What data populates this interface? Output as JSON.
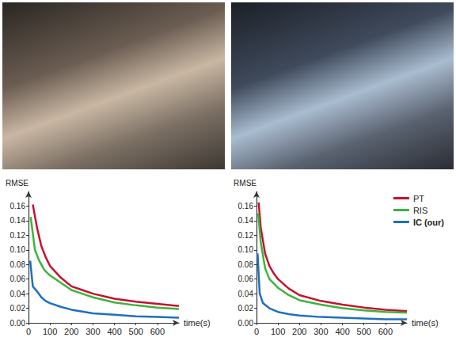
{
  "chart_data": [
    {
      "type": "line",
      "ylabel": "RMSE",
      "xlabel": "time(s)",
      "grid": false,
      "xlim": [
        0,
        700
      ],
      "xticks": [
        0,
        100,
        200,
        300,
        400,
        500,
        600
      ],
      "ylim": [
        0,
        0.18
      ],
      "yticks": [
        {
          "value": 0,
          "label": "0.00"
        },
        0.02,
        0.04,
        0.06,
        0.08,
        {
          "value": 0.1,
          "label": "0.10"
        },
        0.12,
        0.14,
        0.16
      ],
      "series": [
        {
          "name": "PT",
          "color": "#c8102e",
          "x": [
            20,
            40,
            60,
            80,
            100,
            150,
            200,
            250,
            300,
            400,
            500,
            600,
            700
          ],
          "values": [
            0.162,
            0.13,
            0.105,
            0.09,
            0.078,
            0.062,
            0.05,
            0.045,
            0.04,
            0.033,
            0.029,
            0.026,
            0.023
          ]
        },
        {
          "name": "RIS",
          "color": "#3cb43c",
          "x": [
            10,
            30,
            50,
            75,
            100,
            150,
            200,
            250,
            300,
            400,
            500,
            600,
            700
          ],
          "values": [
            0.145,
            0.1,
            0.085,
            0.072,
            0.065,
            0.055,
            0.045,
            0.04,
            0.035,
            0.028,
            0.024,
            0.021,
            0.019
          ]
        },
        {
          "name": "IC (our)",
          "color": "#1f6fc0",
          "x": [
            8,
            20,
            40,
            60,
            80,
            100,
            150,
            200,
            300,
            400,
            500,
            600,
            700
          ],
          "values": [
            0.085,
            0.05,
            0.043,
            0.035,
            0.03,
            0.027,
            0.022,
            0.018,
            0.013,
            0.011,
            0.009,
            0.008,
            0.007
          ]
        }
      ]
    },
    {
      "type": "line",
      "ylabel": "RMSE",
      "xlabel": "time(s)",
      "grid": false,
      "legend": "top-right",
      "xlim": [
        0,
        700
      ],
      "xticks": [
        0,
        100,
        200,
        300,
        400,
        500,
        600
      ],
      "ylim": [
        0,
        0.18
      ],
      "yticks": [
        {
          "value": 0,
          "label": "0.00"
        },
        0.02,
        0.04,
        0.06,
        0.08,
        {
          "value": 0.1,
          "label": "0.10"
        },
        0.12,
        0.14,
        0.16
      ],
      "series": [
        {
          "name": "PT",
          "color": "#c8102e",
          "x": [
            10,
            20,
            40,
            60,
            80,
            100,
            150,
            200,
            300,
            400,
            500,
            600,
            700
          ],
          "values": [
            0.165,
            0.13,
            0.095,
            0.078,
            0.068,
            0.06,
            0.047,
            0.038,
            0.03,
            0.025,
            0.021,
            0.018,
            0.016
          ]
        },
        {
          "name": "RIS",
          "color": "#3cb43c",
          "x": [
            8,
            20,
            40,
            60,
            100,
            150,
            200,
            300,
            400,
            500,
            600,
            700
          ],
          "values": [
            0.15,
            0.11,
            0.075,
            0.06,
            0.048,
            0.038,
            0.031,
            0.025,
            0.02,
            0.017,
            0.015,
            0.014
          ]
        },
        {
          "name": "IC (our)",
          "color": "#1f6fc0",
          "x": [
            5,
            15,
            30,
            60,
            100,
            150,
            200,
            300,
            400,
            500,
            600,
            700
          ],
          "values": [
            0.095,
            0.04,
            0.027,
            0.02,
            0.015,
            0.012,
            0.01,
            0.008,
            0.007,
            0.006,
            0.005,
            0.005
          ]
        }
      ]
    }
  ]
}
